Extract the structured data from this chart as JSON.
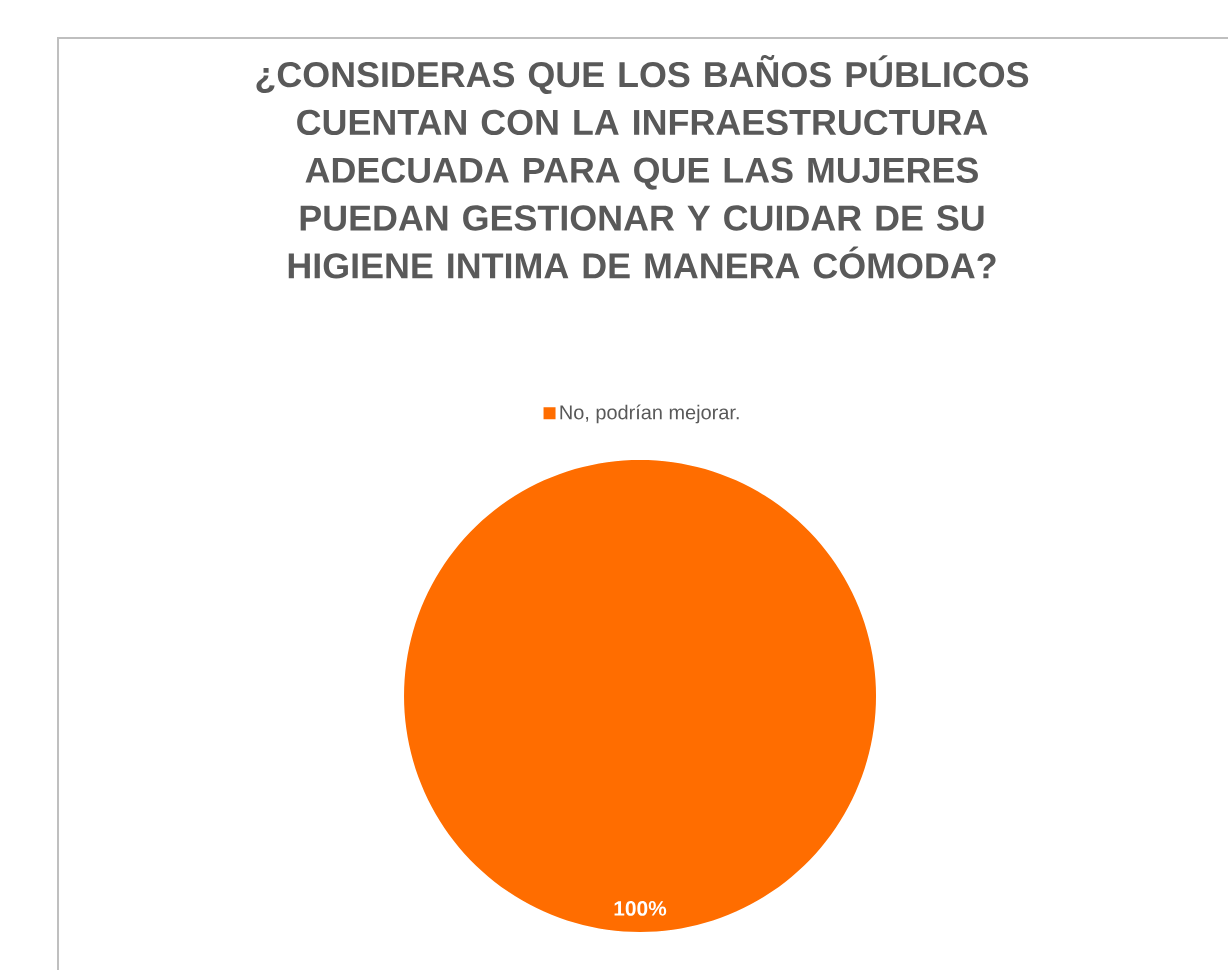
{
  "chart_data": {
    "type": "pie",
    "title": "¿CONSIDERAS QUE LOS BAÑOS PÚBLICOS CUENTAN CON LA INFRAESTRUCTURA ADECUADA PARA QUE LAS MUJERES PUEDAN GESTIONAR Y CUIDAR DE SU HIGIENE INTIMA DE MANERA CÓMODA?",
    "categories": [
      "No, podrían mejorar."
    ],
    "values": [
      100
    ],
    "colors": [
      "#ff6d00"
    ],
    "value_labels": [
      "100%"
    ],
    "legend": "top"
  }
}
